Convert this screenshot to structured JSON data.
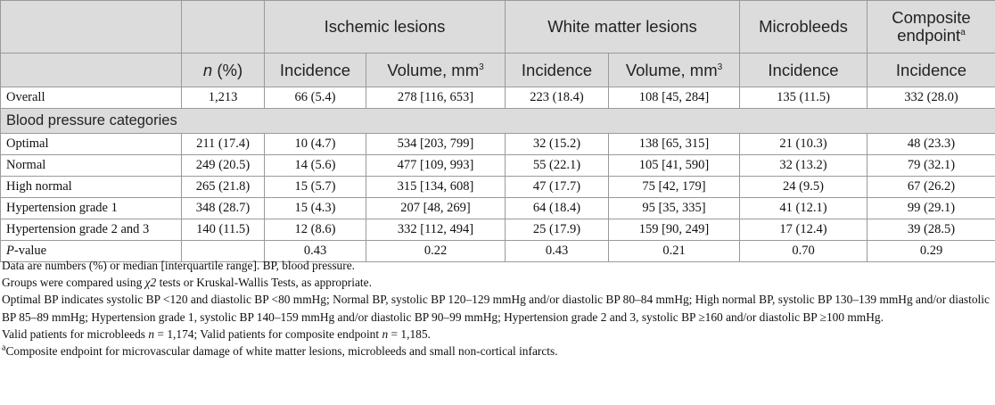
{
  "header": {
    "group_labels": {
      "ischemic": "Ischemic lesions",
      "wml": "White matter lesions",
      "microbleeds": "Microbleeds",
      "composite": "Composite endpoint",
      "composite_sup": "a"
    },
    "sub_labels": {
      "n_pct_n": "n",
      "n_pct_rest": " (%)",
      "incidence": "Incidence",
      "volume": "Volume, mm",
      "volume_sup": "3"
    }
  },
  "rows_overall": [
    {
      "label": "Overall",
      "n": "1,213",
      "isch_inc": "66 (5.4)",
      "isch_vol": "278 [116, 653]",
      "wml_inc": "223 (18.4)",
      "wml_vol": "108 [45, 284]",
      "mb_inc": "135 (11.5)",
      "comp_inc": "332 (28.0)"
    }
  ],
  "section_label": "Blood pressure categories",
  "rows_bp": [
    {
      "label": "Optimal",
      "n": "211 (17.4)",
      "isch_inc": "10 (4.7)",
      "isch_vol": "534 [203, 799]",
      "wml_inc": "32 (15.2)",
      "wml_vol": "138 [65, 315]",
      "mb_inc": "21 (10.3)",
      "comp_inc": "48 (23.3)"
    },
    {
      "label": "Normal",
      "n": "249 (20.5)",
      "isch_inc": "14 (5.6)",
      "isch_vol": "477 [109, 993]",
      "wml_inc": "55 (22.1)",
      "wml_vol": "105 [41, 590]",
      "mb_inc": "32 (13.2)",
      "comp_inc": "79 (32.1)"
    },
    {
      "label": "High normal",
      "n": "265 (21.8)",
      "isch_inc": "15 (5.7)",
      "isch_vol": "315 [134, 608]",
      "wml_inc": "47 (17.7)",
      "wml_vol": "75 [42, 179]",
      "mb_inc": "24 (9.5)",
      "comp_inc": "67 (26.2)"
    },
    {
      "label": "Hypertension grade 1",
      "n": "348 (28.7)",
      "isch_inc": "15 (4.3)",
      "isch_vol": "207 [48, 269]",
      "wml_inc": "64 (18.4)",
      "wml_vol": "95 [35, 335]",
      "mb_inc": "41 (12.1)",
      "comp_inc": "99 (29.1)"
    },
    {
      "label": "Hypertension grade 2 and 3",
      "n": "140 (11.5)",
      "isch_inc": "12 (8.6)",
      "isch_vol": "332 [112, 494]",
      "wml_inc": "25 (17.9)",
      "wml_vol": "159 [90, 249]",
      "mb_inc": "17 (12.4)",
      "comp_inc": "39 (28.5)"
    }
  ],
  "pvalue_row": {
    "label_p": "P",
    "label_rest": "-value",
    "n": "",
    "isch_inc": "0.43",
    "isch_vol": "0.22",
    "wml_inc": "0.43",
    "wml_vol": "0.21",
    "mb_inc": "0.70",
    "comp_inc": "0.29"
  },
  "notes": {
    "line1": "Data are numbers (%) or median [interquartile range]. BP, blood pressure.",
    "line2_pre": "Groups were compared using ",
    "line2_chi": "χ2",
    "line2_post": " tests or Kruskal-Wallis Tests, as appropriate.",
    "line3": "Optimal BP indicates systolic BP <120 and diastolic BP <80 mmHg; Normal BP, systolic BP 120–129 mmHg and/or diastolic BP 80–84 mmHg; High normal BP, systolic BP 130–139 mmHg and/or diastolic BP 85–89 mmHg; Hypertension grade 1, systolic BP 140–159 mmHg and/or diastolic BP 90–99 mmHg; Hypertension grade 2 and 3, systolic BP ≥160 and/or diastolic BP ≥100 mmHg.",
    "line4_a": "Valid patients for microbleeds ",
    "line4_n1": "n",
    "line4_b": " = 1,174; Valid patients for composite endpoint ",
    "line4_n2": "n",
    "line4_c": " = 1,185.",
    "line5_sup": "a",
    "line5": "Composite endpoint for microvascular damage of white matter lesions, microbleeds and small non-cortical infarcts."
  }
}
